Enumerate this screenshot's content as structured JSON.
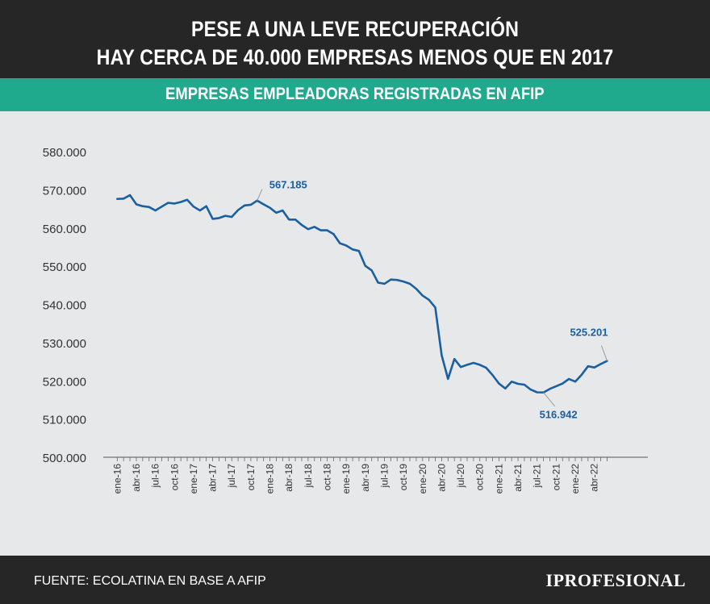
{
  "header": {
    "title_line1": "PESE A UNA LEVE RECUPERACIÓN",
    "title_line2": "HAY CERCA DE 40.000 EMPRESAS MENOS QUE EN 2017"
  },
  "subheader": {
    "title": "EMPRESAS EMPLEADORAS REGISTRADAS EN AFIP"
  },
  "footer": {
    "source": "FUENTE: ECOLATINA EN BASE A AFIP",
    "logo": "IPROFESIONAL"
  },
  "colors": {
    "line": "#1a5fa0",
    "label": "#1a5fa0",
    "header_bg": "#262626",
    "band": "#1fa98d",
    "plot_bg": "#e7e8ea"
  },
  "chart_data": {
    "type": "line",
    "x_ticks": [
      "ene-16",
      "abr-16",
      "jul-16",
      "oct-16",
      "ene-17",
      "abr-17",
      "jul-17",
      "oct-17",
      "ene-18",
      "abr-18",
      "jul-18",
      "oct-18",
      "ene-19",
      "abr-19",
      "jul-19",
      "oct-19",
      "ene-20",
      "abr-20",
      "jul-20",
      "oct-20",
      "ene-21",
      "abr-21",
      "jul-21",
      "oct-21",
      "ene-22",
      "abr-22"
    ],
    "y_ticks": [
      "500.000",
      "510.000",
      "520.000",
      "530.000",
      "540.000",
      "550.000",
      "560.000",
      "570.000",
      "580.000"
    ],
    "ylim": [
      500000,
      580000
    ],
    "n_months": 78,
    "series": [
      {
        "values": [
          567600,
          567700,
          568600,
          566200,
          565700,
          565500,
          564600,
          565600,
          566600,
          566400,
          566800,
          567400,
          565600,
          564600,
          565700,
          562400,
          562600,
          563200,
          562900,
          564700,
          565900,
          566100,
          567185,
          566200,
          565300,
          564000,
          564600,
          562200,
          562200,
          560800,
          559700,
          560300,
          559400,
          559400,
          558400,
          556000,
          555400,
          554400,
          554000,
          550100,
          548900,
          545700,
          545400,
          546500,
          546400,
          546000,
          545400,
          544100,
          542300,
          541200,
          539200,
          526700,
          520500,
          525700,
          523600,
          524200,
          524700,
          524200,
          523400,
          521500,
          519300,
          518000,
          519800,
          519200,
          519000,
          517700,
          517000,
          516942,
          517900,
          518600,
          519300,
          520500,
          519800,
          521600,
          523800,
          523500,
          524400,
          525201
        ]
      }
    ],
    "annotations": [
      {
        "label": "567.185",
        "index": 22
      },
      {
        "label": "516.942",
        "index": 67
      },
      {
        "label": "525.201",
        "index": 77
      }
    ]
  }
}
